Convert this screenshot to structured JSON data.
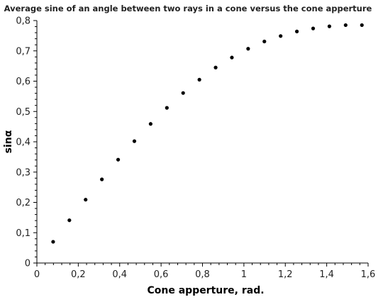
{
  "chart_data": {
    "type": "scatter",
    "title": "Average sine of an angle between two rays in a cone versus the cone apperture",
    "xlabel": "Cone apperture, rad.",
    "ylabel": "sinα",
    "xlim": [
      0,
      1.6
    ],
    "ylim": [
      0,
      0.8
    ],
    "x_ticks": [
      0,
      0.2,
      0.4,
      0.6,
      0.8,
      1.0,
      1.2,
      1.4,
      1.6
    ],
    "x_tick_labels": [
      "0",
      "0,2",
      "0,4",
      "0,6",
      "0,8",
      "1",
      "1,2",
      "1,4",
      "1,6"
    ],
    "y_ticks": [
      0,
      0.1,
      0.2,
      0.3,
      0.4,
      0.5,
      0.6,
      0.7,
      0.8
    ],
    "y_tick_labels": [
      "0",
      "0,1",
      "0,2",
      "0,3",
      "0,4",
      "0,5",
      "0,6",
      "0,7",
      "0,8"
    ],
    "grid": false,
    "legend": false,
    "marker_color": "#000000",
    "x": [
      0.0785,
      0.157,
      0.2355,
      0.314,
      0.3925,
      0.471,
      0.5495,
      0.628,
      0.7065,
      0.785,
      0.8635,
      0.942,
      1.0205,
      1.099,
      1.1775,
      1.256,
      1.3345,
      1.413,
      1.4915,
      1.57
    ],
    "y": [
      0.07,
      0.141,
      0.209,
      0.276,
      0.341,
      0.402,
      0.459,
      0.512,
      0.561,
      0.605,
      0.645,
      0.678,
      0.707,
      0.731,
      0.749,
      0.764,
      0.774,
      0.781,
      0.785,
      0.785
    ]
  }
}
